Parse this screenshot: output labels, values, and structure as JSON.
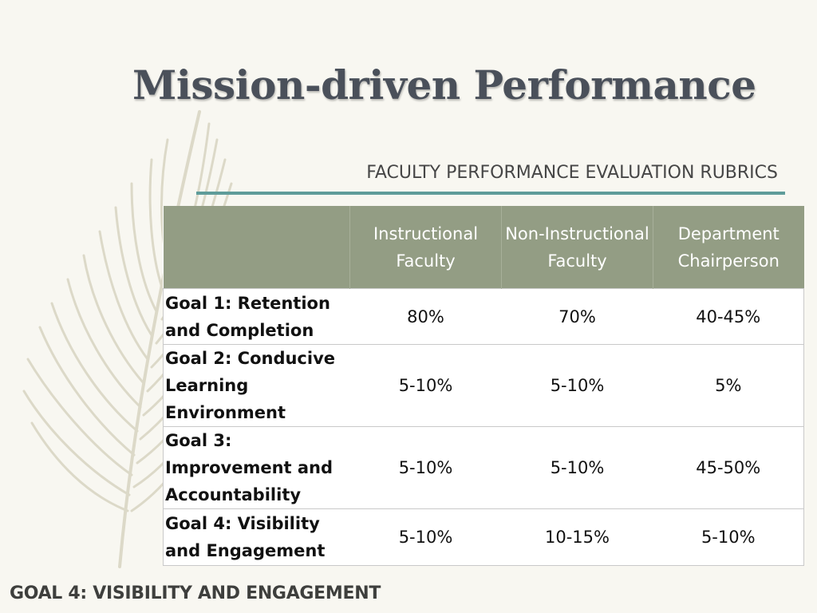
{
  "slide": {
    "title": "Mission-driven Performance",
    "subtitle": "FACULTY PERFORMANCE EVALUATION RUBRICS",
    "footer": "GOAL 4: VISIBILITY AND ENGAGEMENT",
    "colors": {
      "background": "#f8f7f1",
      "header_fill": "#939d84",
      "accent_rule": "#5f9c9a",
      "title_text": "#4a505a"
    },
    "decoration": "feather-graphic"
  },
  "table": {
    "headers": [
      "",
      "Instructional Faculty",
      "Non-Instructional Faculty",
      "Department Chairperson"
    ],
    "rows": [
      {
        "goal": "Goal 1: Retention and Completion",
        "values": [
          "80%",
          "70%",
          "40-45%"
        ]
      },
      {
        "goal": "Goal 2: Conducive Learning Environment",
        "values": [
          "5-10%",
          "5-10%",
          "5%"
        ]
      },
      {
        "goal": "Goal 3: Improvement and Accountability",
        "values": [
          "5-10%",
          "5-10%",
          "45-50%"
        ]
      },
      {
        "goal": "Goal 4: Visibility and Engagement",
        "values": [
          "5-10%",
          "10-15%",
          "5-10%"
        ]
      }
    ]
  }
}
